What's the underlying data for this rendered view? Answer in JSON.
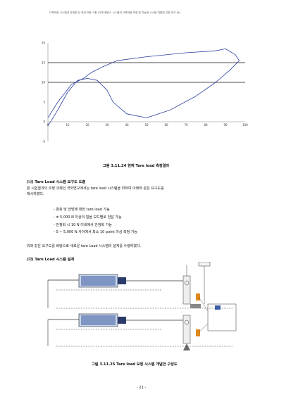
{
  "header": {
    "running_title": "다축하중 시스템과 연계한 전 세계 모형 시험 (다축 밸런스 시스템의 다축하중 보정 및 지능형 시스템 개발에 관한 연구 (ⅲ)"
  },
  "chart_data": {
    "type": "line",
    "title": "",
    "xlabel": "",
    "ylabel": "",
    "xlim": [
      0,
      100
    ],
    "ylim": [
      -5,
      20
    ],
    "x_ticks": [
      "0",
      "10",
      "20",
      "30",
      "40",
      "50",
      "60",
      "70",
      "80",
      "90",
      "100"
    ],
    "y_ticks": [
      "20",
      "15",
      "10",
      "5",
      "0",
      "-5"
    ],
    "grid": "major horizontal lines at 10 and 15",
    "series": [
      {
        "x": [
          0,
          5,
          12,
          18,
          22,
          28,
          35,
          50,
          70,
          85,
          90,
          95,
          97
        ],
        "y": [
          1,
          5,
          9.5,
          11,
          12.5,
          14,
          15.5,
          16.5,
          17.5,
          18,
          18.5,
          17,
          15.5
        ]
      },
      {
        "x": [
          97,
          92,
          85,
          75,
          62,
          50,
          40,
          33,
          30,
          25,
          20,
          15,
          10,
          5,
          2,
          0
        ],
        "y": [
          15.5,
          13,
          10,
          6.5,
          3,
          1,
          2,
          5,
          8,
          10.5,
          11,
          10.5,
          7.5,
          3,
          0.5,
          -1
        ]
      }
    ]
  },
  "figure1": {
    "caption": "그림 3.11.24 현재 Tare load 측정결과"
  },
  "section_na": {
    "heading": "(나) Tare Load 시스템 요구도 도출",
    "para_lines": [
      "본 시험결과의 수행 과제인 국외연구에서는 tare load 시스템을 위하여 아래와 같은 요구도를",
      "제시하였다."
    ],
    "bullets": [
      "- 양축 및 전방에 대한 tare load 가능",
      "- ± 5,000 N 이상의 힘을 모드별로 전달 가능",
      "- 안정화 시 10 N 이내에서 안정화 가능",
      "- 0 ~ 5,000 N 사이에서 최소 10 point 이상 측정 가능"
    ],
    "closing": "위와 같은 요구도를 바탕으로 새로운 tare Load 시스템의 설계를 수행하였다."
  },
  "section_da": {
    "heading": "(다) Tare Load 시스템 설계"
  },
  "figure2": {
    "caption": "그림 3.11.25 Tare load 보정 시스템 개념안 구성도"
  },
  "page": {
    "number": "- 21 -"
  }
}
